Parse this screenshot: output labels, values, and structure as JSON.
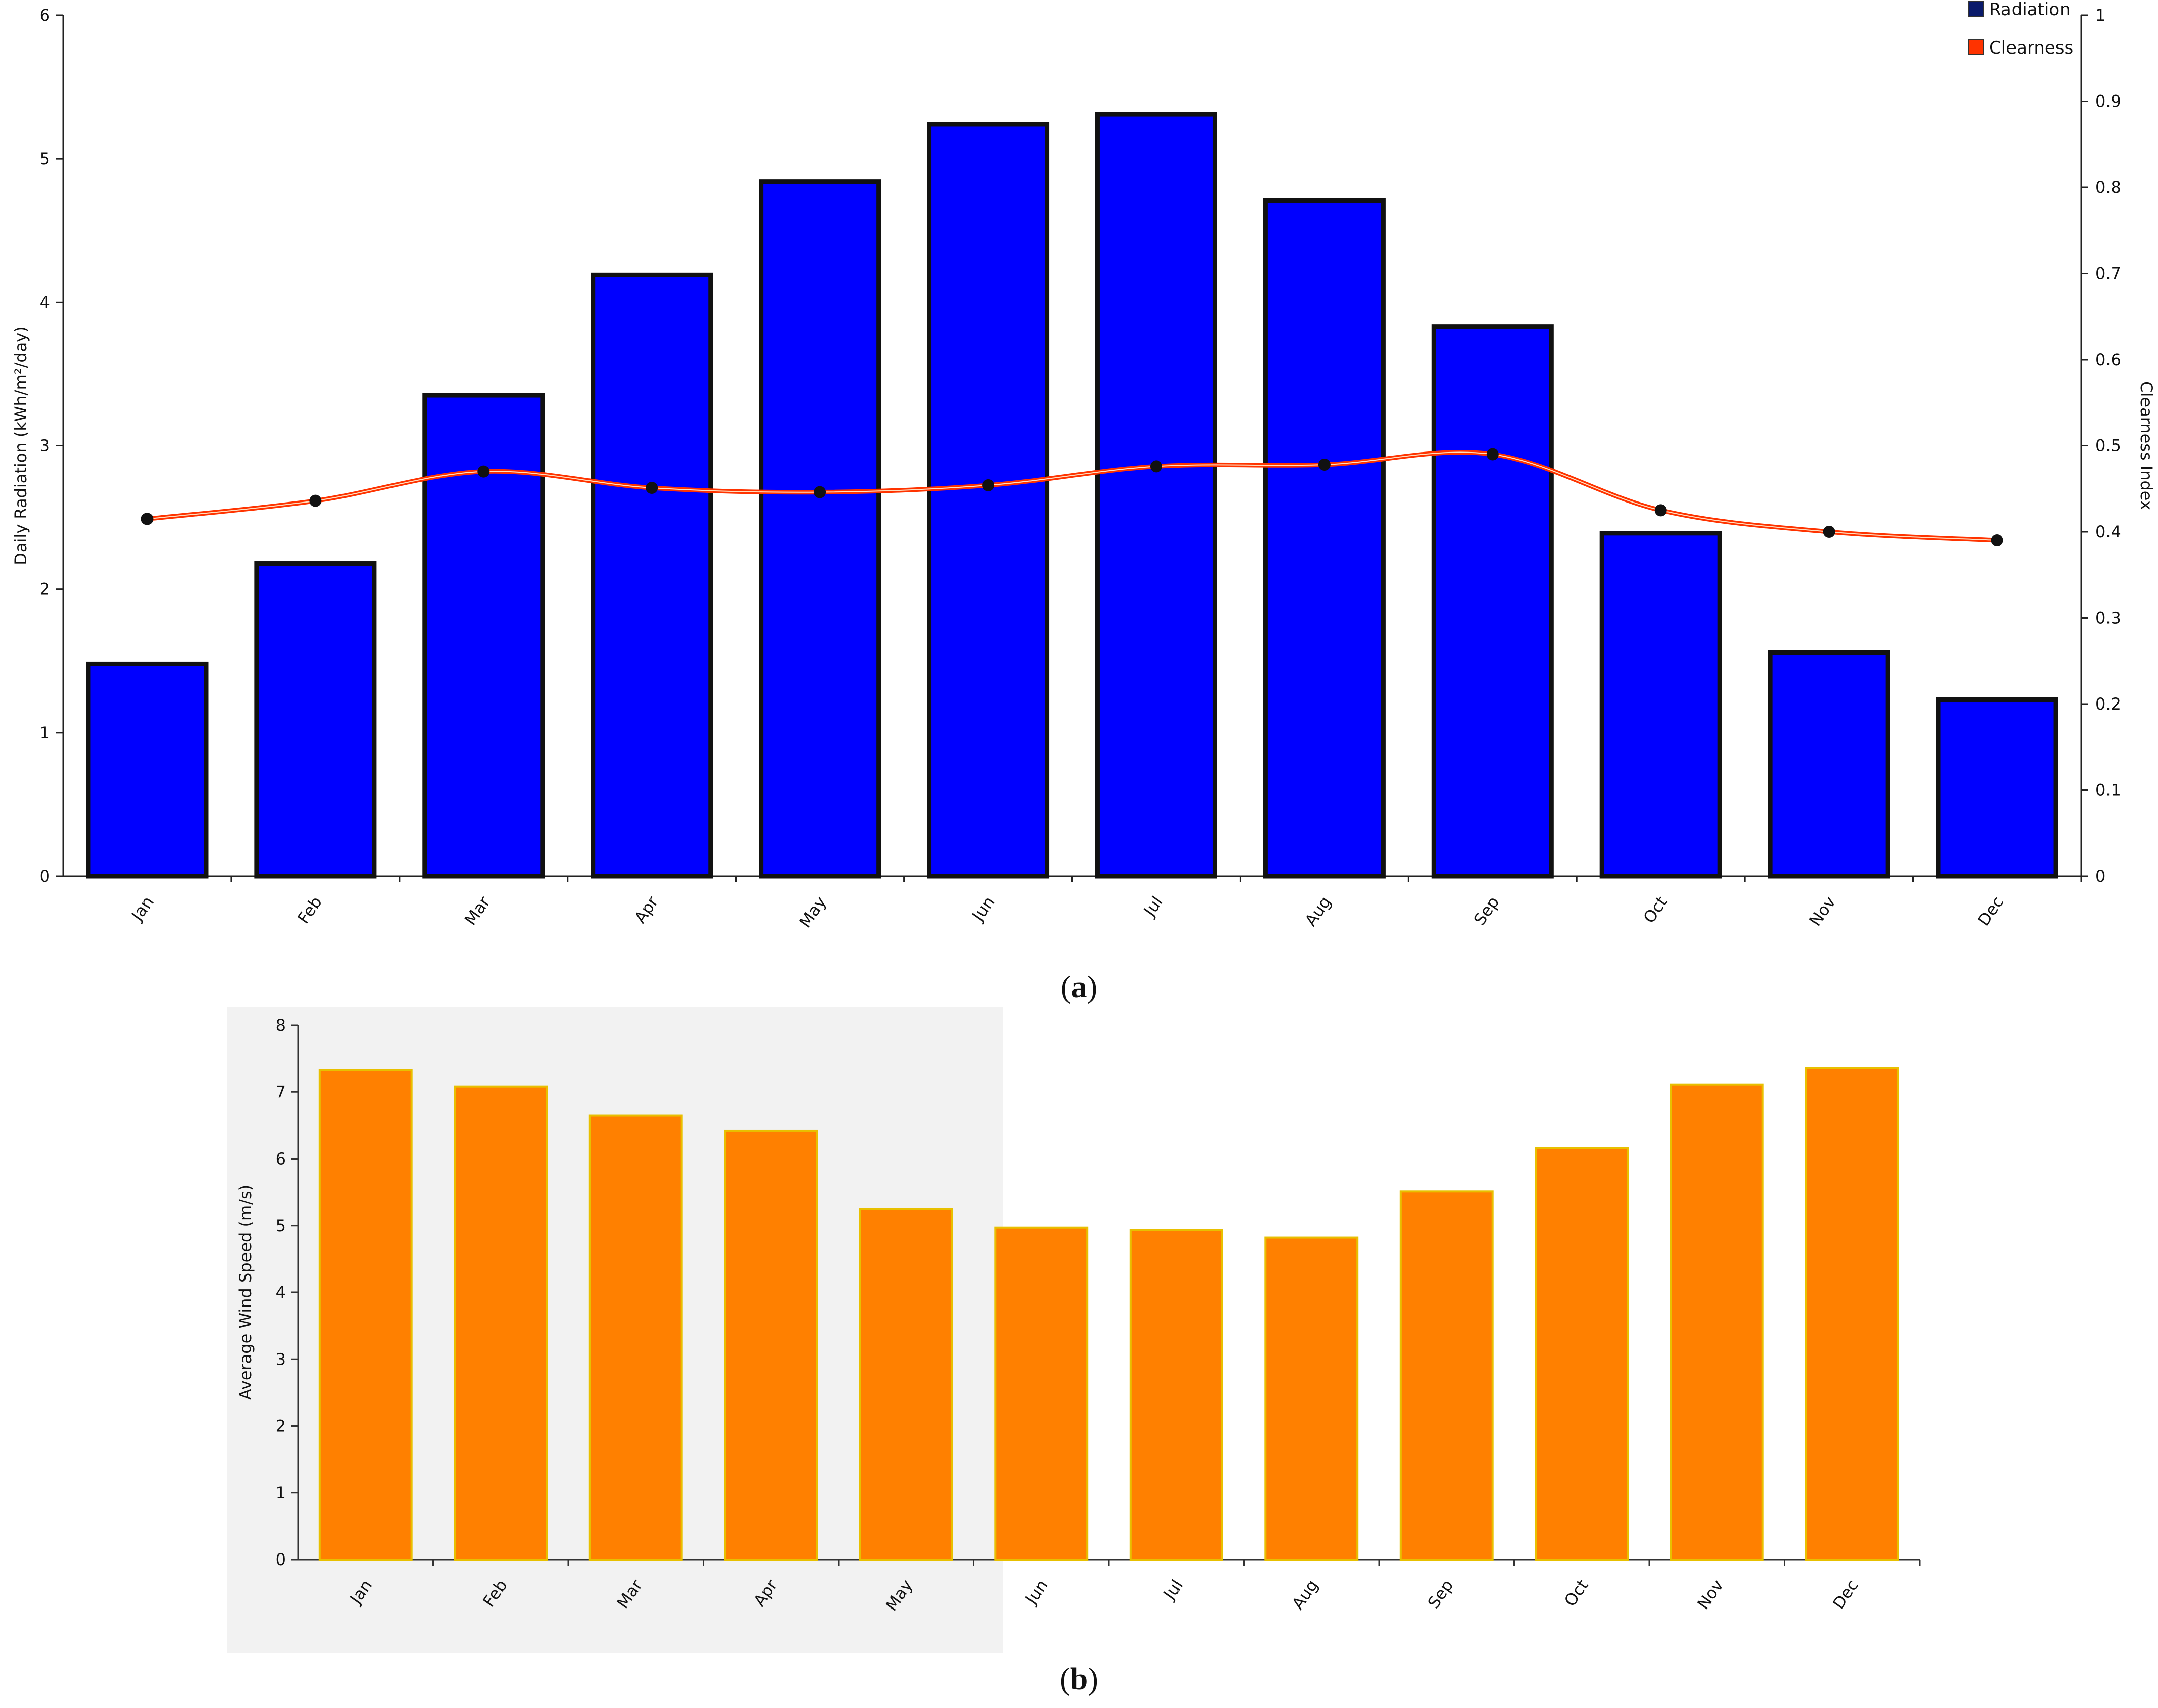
{
  "chart_data": [
    {
      "id": "a",
      "type": "bar+line",
      "caption": "a",
      "categories": [
        "Jan",
        "Feb",
        "Mar",
        "Apr",
        "May",
        "Jun",
        "Jul",
        "Aug",
        "Sep",
        "Oct",
        "Nov",
        "Dec"
      ],
      "series": [
        {
          "name": "Radiation",
          "type": "bar",
          "axis": "left",
          "color": "#0000ff",
          "values": [
            1.48,
            2.18,
            3.35,
            4.19,
            4.84,
            5.24,
            5.31,
            4.71,
            3.83,
            2.39,
            1.56,
            1.23
          ]
        },
        {
          "name": "Clearness",
          "type": "line",
          "axis": "right",
          "color": "#ff3300",
          "values": [
            0.415,
            0.436,
            0.47,
            0.451,
            0.446,
            0.454,
            0.476,
            0.478,
            0.49,
            0.425,
            0.4,
            0.39
          ]
        }
      ],
      "ylabel": "Daily Radiation (kWh/m²/day)",
      "ylim": [
        0,
        6
      ],
      "yticks": [
        "0",
        "1",
        "2",
        "3",
        "4",
        "5",
        "6"
      ],
      "y2label": "Clearness Index",
      "y2lim": [
        0,
        1
      ],
      "y2ticks": [
        "0",
        "0.1",
        "0.2",
        "0.3",
        "0.4",
        "0.5",
        "0.6",
        "0.7",
        "0.8",
        "0.9",
        "1"
      ],
      "legend": {
        "placement": "top-right",
        "items": [
          "Radiation",
          "Clearness"
        ]
      },
      "background": "#ffffff",
      "grid": false
    },
    {
      "id": "b",
      "type": "bar",
      "caption": "b",
      "categories": [
        "Jan",
        "Feb",
        "Mar",
        "Apr",
        "May",
        "Jun",
        "Jul",
        "Aug",
        "Sep",
        "Oct",
        "Nov",
        "Dec"
      ],
      "series": [
        {
          "type": "bar",
          "color": "#ff8000",
          "values": [
            7.33,
            7.08,
            6.65,
            6.42,
            5.25,
            4.97,
            4.93,
            4.82,
            5.51,
            6.16,
            7.11,
            7.36
          ]
        }
      ],
      "ylabel": "Average Wind Speed (m/s)",
      "ylim": [
        0,
        8
      ],
      "yticks": [
        "0",
        "1",
        "2",
        "3",
        "4",
        "5",
        "6",
        "7",
        "8"
      ],
      "background": "#f2f2f2",
      "grid": false
    }
  ]
}
